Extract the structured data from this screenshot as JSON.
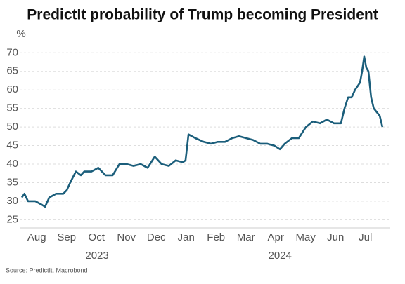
{
  "chart_data": {
    "type": "line",
    "title": "PredictIt probability of Trump becoming President",
    "y_label": "%",
    "source": "Source: PredictIt, Macrobond",
    "grid": true,
    "xlim": [
      -0.07,
      12.33
    ],
    "ylim": [
      22.8,
      71
    ],
    "yticks": [
      25,
      30,
      35,
      40,
      45,
      50,
      55,
      60,
      65,
      70
    ],
    "xticks": [
      {
        "value": 0.5,
        "label": "Aug"
      },
      {
        "value": 1.5,
        "label": "Sep"
      },
      {
        "value": 2.5,
        "label": "Oct"
      },
      {
        "value": 3.5,
        "label": "Nov"
      },
      {
        "value": 4.5,
        "label": "Dec"
      },
      {
        "value": 5.5,
        "label": "Jan"
      },
      {
        "value": 6.5,
        "label": "Feb"
      },
      {
        "value": 7.5,
        "label": "Mar"
      },
      {
        "value": 8.5,
        "label": "Apr"
      },
      {
        "value": 9.5,
        "label": "May"
      },
      {
        "value": 10.5,
        "label": "Jun"
      },
      {
        "value": 11.5,
        "label": "Jul"
      }
    ],
    "x_group_labels": [
      {
        "value": 2.52,
        "label": "2023"
      },
      {
        "value": 8.64,
        "label": "2024"
      }
    ],
    "x": [
      0,
      0.09,
      0.21,
      0.45,
      0.68,
      0.78,
      0.92,
      1.15,
      1.39,
      1.51,
      1.62,
      1.81,
      1.98,
      2.09,
      2.33,
      2.56,
      2.8,
      3.04,
      3.27,
      3.51,
      3.74,
      3.98,
      4.21,
      4.45,
      4.68,
      4.92,
      5.15,
      5.39,
      5.48,
      5.58,
      5.81,
      6.09,
      6.33,
      6.56,
      6.8,
      7.04,
      7.27,
      7.51,
      7.74,
      7.98,
      8.21,
      8.45,
      8.64,
      8.8,
      9.04,
      9.27,
      9.51,
      9.74,
      9.98,
      10.21,
      10.45,
      10.68,
      10.8,
      10.92,
      11.04,
      11.15,
      11.32,
      11.39,
      11.46,
      11.53,
      11.6,
      11.69,
      11.78,
      11.88,
      11.98,
      12.07
    ],
    "series": [
      {
        "color": "#1b5e7b",
        "values": [
          31,
          32,
          30,
          30,
          29,
          28.5,
          31,
          32,
          32,
          33,
          35,
          38,
          37,
          38,
          38,
          39,
          37,
          37,
          40,
          40,
          39.5,
          40,
          39,
          42,
          40,
          39.5,
          41,
          40.5,
          41,
          48,
          47,
          46,
          45.5,
          46,
          46,
          47,
          47.5,
          47,
          46.5,
          45.5,
          45.5,
          45,
          44,
          45.5,
          47,
          47,
          50,
          51.5,
          51,
          52,
          51,
          51,
          55,
          58,
          58,
          60,
          62,
          65,
          69,
          66,
          65,
          58,
          55,
          54,
          53,
          50
        ]
      }
    ]
  }
}
